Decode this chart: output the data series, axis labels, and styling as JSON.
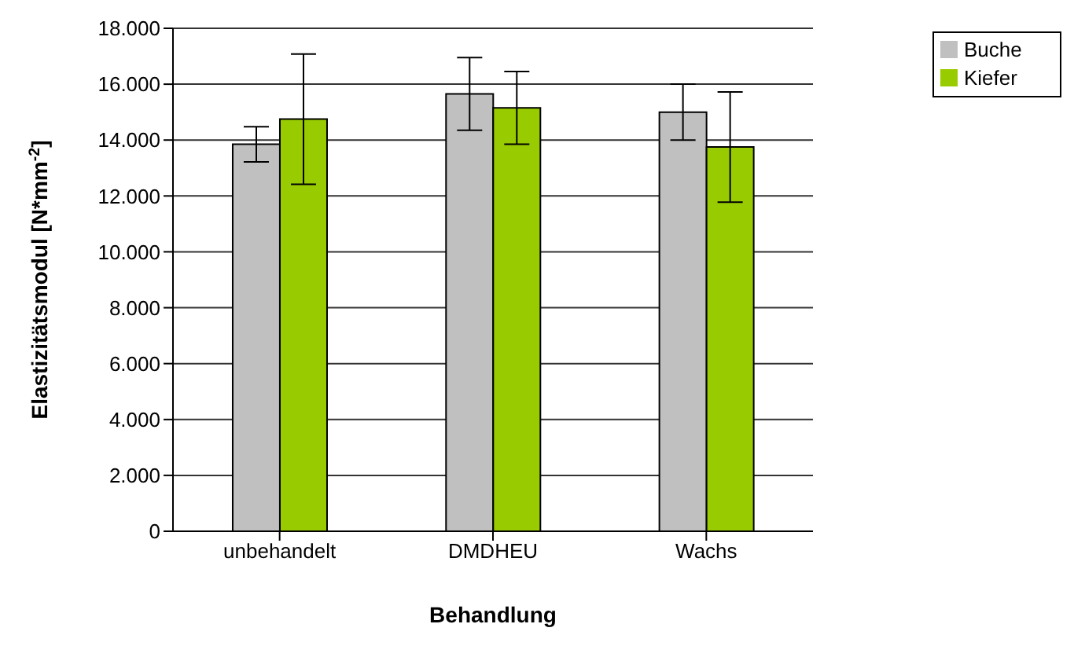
{
  "chart_data": {
    "type": "bar",
    "xlabel": "Behandlung",
    "ylabel": "Elastizitätsmodul [N*mm$^{-2}$]",
    "categories": [
      "unbehandelt",
      "DMDHEU",
      "Wachs"
    ],
    "series": [
      {
        "name": "Buche",
        "color": "#c0c0c0",
        "values": [
          13850,
          15650,
          15000
        ],
        "errors": [
          630,
          1300,
          1000
        ]
      },
      {
        "name": "Kiefer",
        "color": "#99cc00",
        "values": [
          14750,
          15150,
          13750
        ],
        "errors": [
          2330,
          1300,
          1970
        ]
      }
    ],
    "ylim": [
      0,
      18000
    ],
    "yticks": [
      0,
      {
        "value": 2000,
        "label": "2.000"
      },
      {
        "value": 4000,
        "label": "4.000"
      },
      {
        "value": 6000,
        "label": "6.000"
      },
      {
        "value": 8000,
        "label": "8.000"
      },
      {
        "value": 10000,
        "label": "10.000"
      },
      {
        "value": 12000,
        "label": "12.000"
      },
      {
        "value": 14000,
        "label": "14.000"
      },
      {
        "value": 16000,
        "label": "16.000"
      },
      {
        "value": 18000,
        "label": "18.000"
      }
    ],
    "grid": "y",
    "legend": "top right"
  }
}
